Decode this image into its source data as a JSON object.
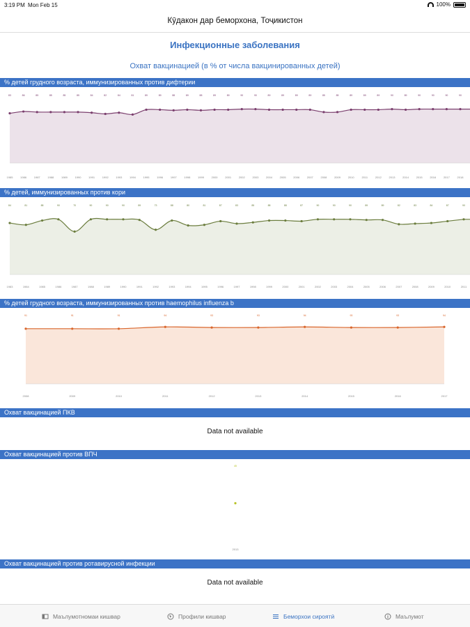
{
  "status_bar": {
    "time": "3:19 PM",
    "date": "Mon Feb 15",
    "battery": "100%"
  },
  "nav": {
    "title": "Кӯдакон дар беморхона, Тоҷикистон"
  },
  "page": {
    "title": "Инфекционные заболевания",
    "subtitle": "Охват вакцинацией (в % от числа вакцинированных детей)"
  },
  "sections": {
    "diphtheria": "% детей грудного возраста, иммунизированных против дифтерии",
    "measles": "% детей, иммунизированных против кори",
    "hib": "% детей грудного возраста, иммунизированных против haemophilus influenza b",
    "pcv": "Охват вакцинацией ПКВ",
    "hpv": "Охват вакцинацией против ВПЧ",
    "rotavirus": "Охват вакцинацией против ротавирусной инфекции"
  },
  "not_available": {
    "pcv": "Data not available",
    "rotavirus": "Data not available"
  },
  "chart_data": [
    {
      "type": "area",
      "id": "diphtheria",
      "color": "#7b3f6e",
      "fill": "#ece2ea",
      "x": [
        "1985",
        "1986",
        "1987",
        "1988",
        "1989",
        "1990",
        "1991",
        "1992",
        "1993",
        "1994",
        "1995",
        "1996",
        "1997",
        "1998",
        "1999",
        "2000",
        "2001",
        "2002",
        "2003",
        "2004",
        "2005",
        "2006",
        "2007",
        "2008",
        "2009",
        "2010",
        "2011",
        "2012",
        "2013",
        "2014",
        "2015",
        "2016",
        "2017",
        "2018"
      ],
      "y": [
        83,
        86,
        85,
        85,
        85,
        85,
        84,
        82,
        84,
        81,
        89,
        89,
        88,
        89,
        88,
        89,
        89,
        90,
        90,
        89,
        89,
        89,
        89,
        85,
        85,
        89,
        89,
        89,
        90,
        89,
        90,
        90,
        90,
        90
      ]
    },
    {
      "type": "area",
      "id": "measles",
      "color": "#6b7d3e",
      "fill": "#ecefe6",
      "x": [
        "1983",
        "1984",
        "1985",
        "1986",
        "1987",
        "1988",
        "1989",
        "1990",
        "1991",
        "1992",
        "1993",
        "1994",
        "1995",
        "1996",
        "1997",
        "1998",
        "1999",
        "2000",
        "2001",
        "2002",
        "2003",
        "2004",
        "2005",
        "2006",
        "2007",
        "2008",
        "2009",
        "2010",
        "2011"
      ],
      "y": [
        84,
        81,
        88,
        90,
        70,
        90,
        90,
        90,
        89,
        73,
        88,
        80,
        81,
        87,
        83,
        85,
        88,
        88,
        87,
        90,
        90,
        90,
        89,
        89,
        82,
        83,
        84,
        87,
        90
      ]
    },
    {
      "type": "area",
      "id": "hib",
      "color": "#d9662c",
      "fill": "#fae6da",
      "x": [
        "2008",
        "2009",
        "2010",
        "2011",
        "2012",
        "2013",
        "2014",
        "2015",
        "2016",
        "2017"
      ],
      "y": [
        91,
        91,
        91,
        94,
        93,
        93,
        94,
        93,
        93,
        94
      ]
    },
    {
      "type": "scatter",
      "id": "hpv",
      "color": "#b5c01e",
      "x": [
        "2013"
      ],
      "y": [
        45
      ]
    }
  ],
  "tabs": [
    {
      "label": "Маълумотномаи кишвар",
      "icon": "book-icon"
    },
    {
      "label": "Профили кишвар",
      "icon": "globe-icon"
    },
    {
      "label": "Беморхои сироятӣ",
      "icon": "chart-icon",
      "active": true
    },
    {
      "label": "Маълумот",
      "icon": "info-icon"
    }
  ]
}
